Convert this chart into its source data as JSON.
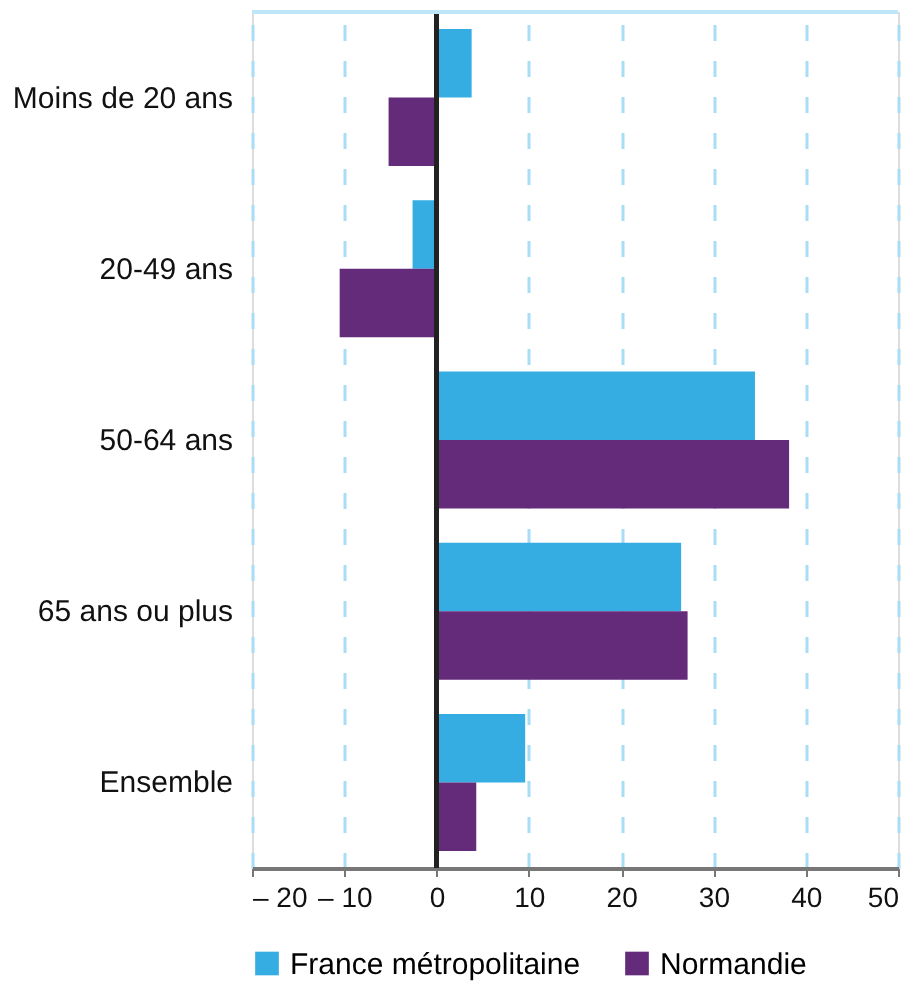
{
  "chart_data": {
    "type": "bar",
    "orientation": "horizontal",
    "categories": [
      "Moins de 20 ans",
      "20-49 ans",
      "50-64 ans",
      "65 ans ou plus",
      "Ensemble"
    ],
    "series": [
      {
        "name": "France métropolitaine",
        "color": "#35ade2",
        "values": [
          3.8,
          -2.6,
          34.5,
          26.5,
          9.6
        ]
      },
      {
        "name": "Normandie",
        "color": "#642b7b",
        "values": [
          -5.2,
          -10.5,
          38.2,
          27.2,
          4.3
        ]
      }
    ],
    "xlim": [
      -20,
      50
    ],
    "xticks": [
      {
        "value": -20,
        "label": "– 20"
      },
      {
        "value": -10,
        "label": "– 10"
      },
      0,
      10,
      20,
      30,
      40,
      50
    ],
    "grid": "x",
    "legend": "bottom"
  }
}
